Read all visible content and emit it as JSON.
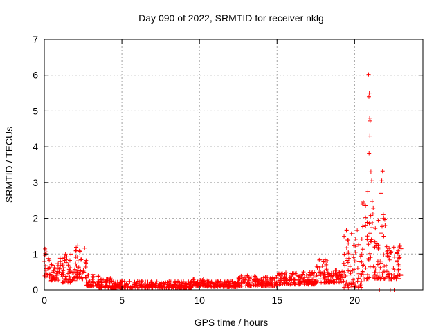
{
  "chart_data": {
    "type": "scatter",
    "title": "Day 090 of 2022, SRMTID for receiver nklg",
    "xlabel": "GPS time / hours",
    "ylabel": "SRMTID / TECUs",
    "xlim": [
      0,
      24.4
    ],
    "ylim": [
      0,
      7
    ],
    "xticks": [
      0,
      5,
      10,
      15,
      20
    ],
    "yticks": [
      0,
      1,
      2,
      3,
      4,
      5,
      6,
      7
    ],
    "grid": true,
    "marker": "+",
    "color": "#ff0000",
    "series": [
      {
        "name": "SRMTID",
        "envelope_description": "dense point cloud approximated by segments",
        "segments": [
          {
            "x_start": 0.0,
            "x_end": 0.4,
            "y_low": 0.35,
            "y_high": 1.15
          },
          {
            "x_start": 0.4,
            "x_end": 1.0,
            "y_low": 0.25,
            "y_high": 0.75
          },
          {
            "x_start": 1.0,
            "x_end": 2.0,
            "y_low": 0.2,
            "y_high": 1.0
          },
          {
            "x_start": 2.0,
            "x_end": 2.7,
            "y_low": 0.3,
            "y_high": 1.25
          },
          {
            "x_start": 2.7,
            "x_end": 3.5,
            "y_low": 0.1,
            "y_high": 0.45
          },
          {
            "x_start": 3.5,
            "x_end": 4.3,
            "y_low": 0.05,
            "y_high": 0.35
          },
          {
            "x_start": 4.3,
            "x_end": 9.5,
            "y_low": 0.05,
            "y_high": 0.25
          },
          {
            "x_start": 9.5,
            "x_end": 10.5,
            "y_low": 0.1,
            "y_high": 0.3
          },
          {
            "x_start": 10.5,
            "x_end": 12.5,
            "y_low": 0.08,
            "y_high": 0.25
          },
          {
            "x_start": 12.5,
            "x_end": 15.0,
            "y_low": 0.1,
            "y_high": 0.4
          },
          {
            "x_start": 15.0,
            "x_end": 17.5,
            "y_low": 0.15,
            "y_high": 0.5
          },
          {
            "x_start": 17.5,
            "x_end": 18.3,
            "y_low": 0.2,
            "y_high": 0.85
          },
          {
            "x_start": 18.3,
            "x_end": 19.3,
            "y_low": 0.2,
            "y_high": 0.55
          },
          {
            "x_start": 19.3,
            "x_end": 20.5,
            "y_low": 0.05,
            "y_high": 1.7
          },
          {
            "x_start": 20.5,
            "x_end": 21.2,
            "y_low": 0.3,
            "y_high": 2.5
          },
          {
            "x_start": 21.2,
            "x_end": 22.0,
            "y_low": 0.3,
            "y_high": 2.1
          },
          {
            "x_start": 22.0,
            "x_end": 23.0,
            "y_low": 0.3,
            "y_high": 1.25
          }
        ],
        "outliers": [
          {
            "x": 20.9,
            "y": 6.02
          },
          {
            "x": 20.95,
            "y": 5.5
          },
          {
            "x": 20.92,
            "y": 5.4
          },
          {
            "x": 20.97,
            "y": 4.8
          },
          {
            "x": 21.0,
            "y": 4.72
          },
          {
            "x": 20.98,
            "y": 4.3
          },
          {
            "x": 20.93,
            "y": 3.82
          },
          {
            "x": 21.05,
            "y": 3.3
          },
          {
            "x": 21.1,
            "y": 3.05
          },
          {
            "x": 20.85,
            "y": 2.75
          },
          {
            "x": 21.8,
            "y": 3.32
          },
          {
            "x": 21.75,
            "y": 3.05
          },
          {
            "x": 21.7,
            "y": 2.7
          },
          {
            "x": 20.7,
            "y": 2.35
          },
          {
            "x": 21.85,
            "y": 2.1
          },
          {
            "x": 21.6,
            "y": 0.0
          },
          {
            "x": 22.3,
            "y": 0.0
          },
          {
            "x": 22.55,
            "y": 0.0
          }
        ]
      }
    ]
  }
}
